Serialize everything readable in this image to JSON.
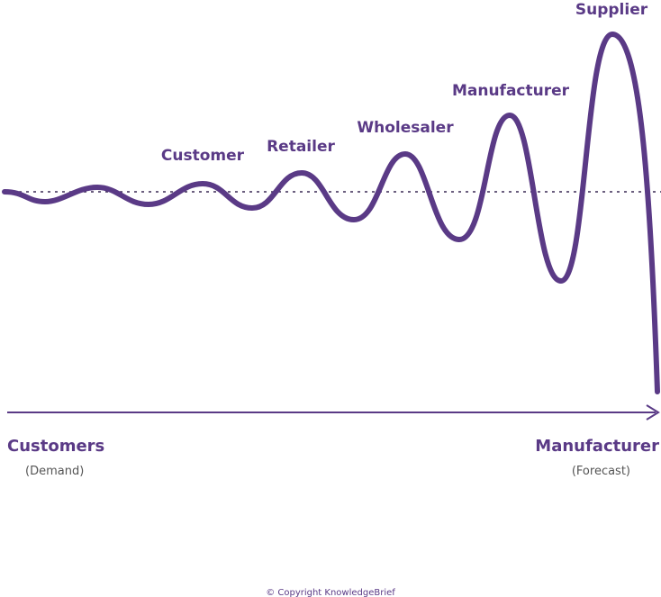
{
  "stages": [
    "Customer",
    "Retailer",
    "Wholesaler",
    "Manufacturer",
    "Supplier"
  ],
  "axis": {
    "left": {
      "title": "Customers",
      "subtitle": "(Demand)"
    },
    "right": {
      "title": "Manufacturer",
      "subtitle": "(Forecast)"
    }
  },
  "footer": "© Copyright KnowledgeBrief"
}
